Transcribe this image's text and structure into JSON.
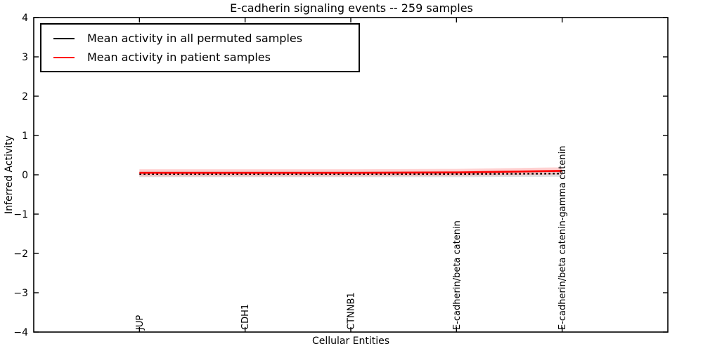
{
  "chart_data": {
    "type": "line",
    "title": "E-cadherin signaling events -- 259 samples",
    "xlabel": "Cellular Entities",
    "ylabel": "Inferred Activity",
    "ylim": [
      -4,
      4
    ],
    "ytick_labels": [
      "4",
      "3",
      "2",
      "1",
      "0",
      "−1",
      "−2",
      "−3",
      "−4"
    ],
    "ytick_values": [
      4,
      3,
      2,
      1,
      0,
      -1,
      -2,
      -3,
      -4
    ],
    "categories": [
      "JUP",
      "CDH1",
      "CTNNB1",
      "E-cadherin/beta catenin",
      "E-cadherin/beta catenin-gamma catenin"
    ],
    "series": [
      {
        "name": "Mean activity in all permuted samples",
        "color": "#000000",
        "linestyle": "dotted",
        "values": [
          0.02,
          0.02,
          0.02,
          0.02,
          0.03
        ],
        "band_halfwidth": 0.08,
        "band_color": "#bbbbbb"
      },
      {
        "name": "Mean activity in patient samples",
        "color": "#ff0000",
        "linestyle": "solid",
        "values": [
          0.05,
          0.05,
          0.05,
          0.06,
          0.1
        ],
        "band_halfwidth": 0.09,
        "band_color": "#ff9999"
      }
    ],
    "legend_position": "upper left",
    "grid": false,
    "axis_color": "#000000",
    "background_color": "#ffffff"
  }
}
